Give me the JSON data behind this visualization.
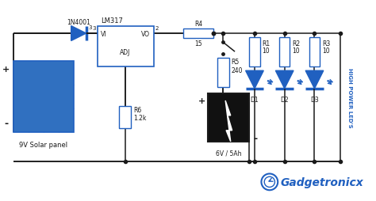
{
  "bg_color": "#ffffff",
  "line_color": "#1a1a1a",
  "blue_color": "#2060c0",
  "watermark": "Gadgetronicx",
  "labels": {
    "diode_label": "1N4001",
    "ic_label": "LM317",
    "ic_vi": "VI",
    "ic_vo": "VO",
    "ic_adj": "ADJ",
    "r4": "R4",
    "r4v": "15",
    "r5": "R5",
    "r5v": "240",
    "r6": "R6",
    "r6v": "1.2k",
    "r1": "R1",
    "r1v": "10",
    "r2": "R2",
    "r2v": "10",
    "r3": "R3",
    "r3v": "10",
    "d1": "D1",
    "d2": "D2",
    "d3": "D3",
    "battery": "6V / 5Ah",
    "solar": "9V Solar panel",
    "high_power": "HIGH POWER LED'S",
    "pin3": "3",
    "pin2": "2",
    "plus": "+",
    "minus": "-"
  },
  "solar_panel": {
    "rows": 3,
    "cols": 4,
    "color": "#3070c0",
    "grid_color": "#6090d0"
  }
}
